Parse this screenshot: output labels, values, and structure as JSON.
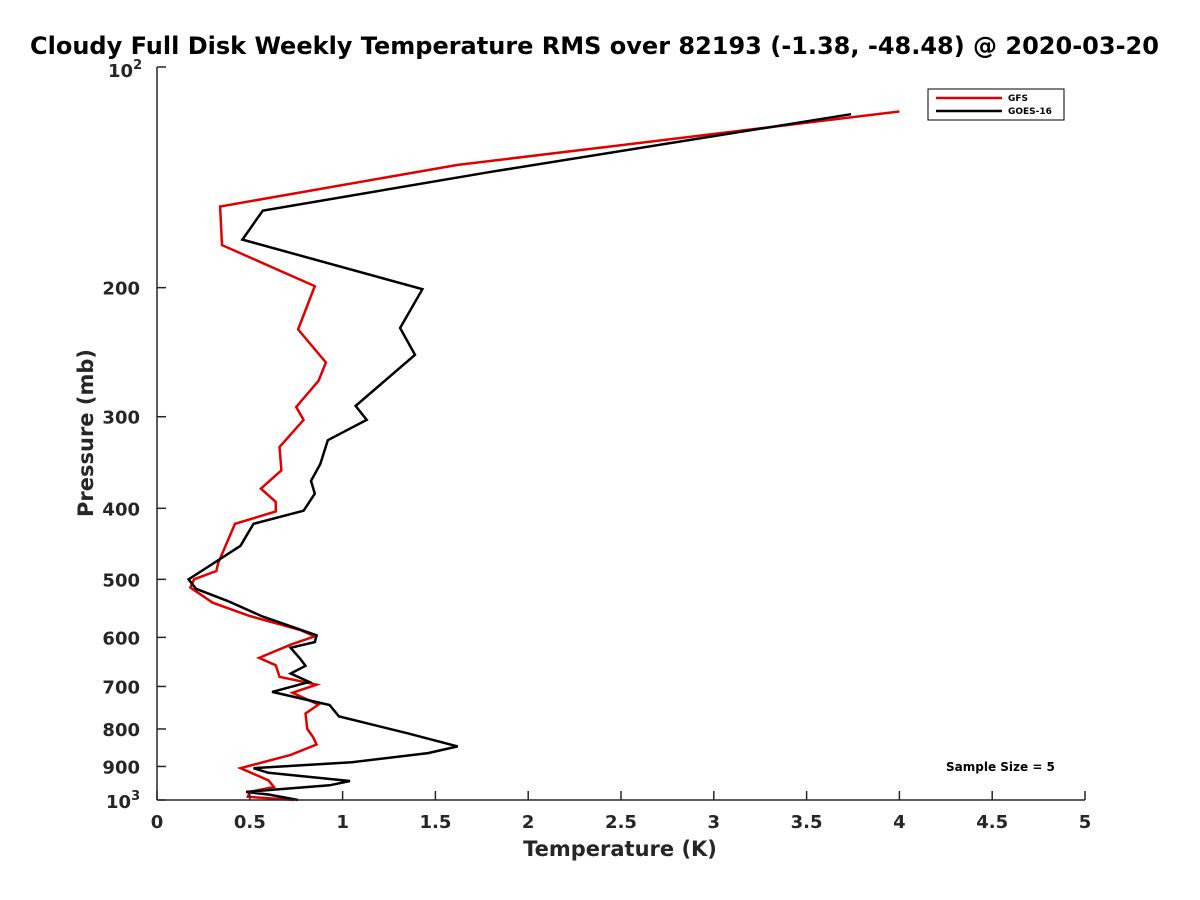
{
  "chart_data": {
    "type": "line",
    "title": "Cloudy Full Disk Weekly Temperature RMS over 82193 (-1.38, -48.48) @ 2020-03-20",
    "xlabel": "Temperature (K)",
    "ylabel": "Pressure (mb)",
    "xlim": [
      0,
      5
    ],
    "ylim": [
      100,
      1000
    ],
    "y_scale": "log",
    "y_reversed": true,
    "grid": false,
    "legend_position": "top-right",
    "x_ticks": [
      0,
      0.5,
      1,
      1.5,
      2,
      2.5,
      3,
      3.5,
      4,
      4.5,
      5
    ],
    "x_tick_labels": [
      "0",
      "0.5",
      "1",
      "1.5",
      "2",
      "2.5",
      "3",
      "3.5",
      "4",
      "4.5",
      "5"
    ],
    "y_ticks": [
      200,
      300,
      400,
      500,
      600,
      700,
      800,
      900
    ],
    "y_tick_labels": [
      "200",
      "300",
      "400",
      "500",
      "600",
      "700",
      "800",
      "900"
    ],
    "y_top_label": {
      "base": "10",
      "exp": "2"
    },
    "y_bottom_label": {
      "base": "10",
      "exp": "3"
    },
    "annotation": "Sample Size = 5",
    "series": [
      {
        "name": "GFS",
        "color": "#e00000",
        "points": [
          [
            4.0,
            115
          ],
          [
            1.62,
            136
          ],
          [
            0.34,
            155
          ],
          [
            0.35,
            175
          ],
          [
            0.85,
            199
          ],
          [
            0.76,
            228
          ],
          [
            0.91,
            253
          ],
          [
            0.87,
            268
          ],
          [
            0.75,
            291
          ],
          [
            0.79,
            303
          ],
          [
            0.66,
            330
          ],
          [
            0.67,
            355
          ],
          [
            0.56,
            376
          ],
          [
            0.64,
            392
          ],
          [
            0.64,
            404
          ],
          [
            0.42,
            420
          ],
          [
            0.33,
            475
          ],
          [
            0.32,
            487
          ],
          [
            0.2,
            500
          ],
          [
            0.18,
            513
          ],
          [
            0.3,
            538
          ],
          [
            0.5,
            561
          ],
          [
            0.77,
            586
          ],
          [
            0.85,
            598
          ],
          [
            0.72,
            614
          ],
          [
            0.55,
            640
          ],
          [
            0.64,
            655
          ],
          [
            0.66,
            679
          ],
          [
            0.86,
            696
          ],
          [
            0.73,
            714
          ],
          [
            0.87,
            741
          ],
          [
            0.8,
            762
          ],
          [
            0.81,
            800
          ],
          [
            0.84,
            820
          ],
          [
            0.86,
            840
          ],
          [
            0.72,
            868
          ],
          [
            0.45,
            905
          ],
          [
            0.6,
            940
          ],
          [
            0.63,
            960
          ],
          [
            0.5,
            975
          ],
          [
            0.49,
            990
          ],
          [
            0.74,
            1000
          ]
        ]
      },
      {
        "name": "GOES-16",
        "color": "#000000",
        "points": [
          [
            3.74,
            116
          ],
          [
            1.8,
            139
          ],
          [
            0.57,
            157
          ],
          [
            0.46,
            172
          ],
          [
            1.43,
            201
          ],
          [
            1.31,
            227
          ],
          [
            1.39,
            247
          ],
          [
            1.07,
            290
          ],
          [
            1.13,
            303
          ],
          [
            0.92,
            323
          ],
          [
            0.88,
            348
          ],
          [
            0.83,
            367
          ],
          [
            0.85,
            382
          ],
          [
            0.79,
            403
          ],
          [
            0.52,
            420
          ],
          [
            0.45,
            450
          ],
          [
            0.24,
            487
          ],
          [
            0.17,
            500
          ],
          [
            0.21,
            515
          ],
          [
            0.38,
            535
          ],
          [
            0.57,
            562
          ],
          [
            0.86,
            596
          ],
          [
            0.85,
            609
          ],
          [
            0.72,
            620
          ],
          [
            0.77,
            641
          ],
          [
            0.8,
            656
          ],
          [
            0.72,
            672
          ],
          [
            0.82,
            690
          ],
          [
            0.62,
            712
          ],
          [
            0.93,
            742
          ],
          [
            0.98,
            769
          ],
          [
            1.35,
            811
          ],
          [
            1.62,
            845
          ],
          [
            1.46,
            863
          ],
          [
            1.05,
            888
          ],
          [
            0.52,
            905
          ],
          [
            0.6,
            918
          ],
          [
            1.04,
            942
          ],
          [
            0.93,
            955
          ],
          [
            0.48,
            975
          ],
          [
            0.6,
            983
          ],
          [
            0.76,
            1000
          ]
        ]
      }
    ]
  }
}
